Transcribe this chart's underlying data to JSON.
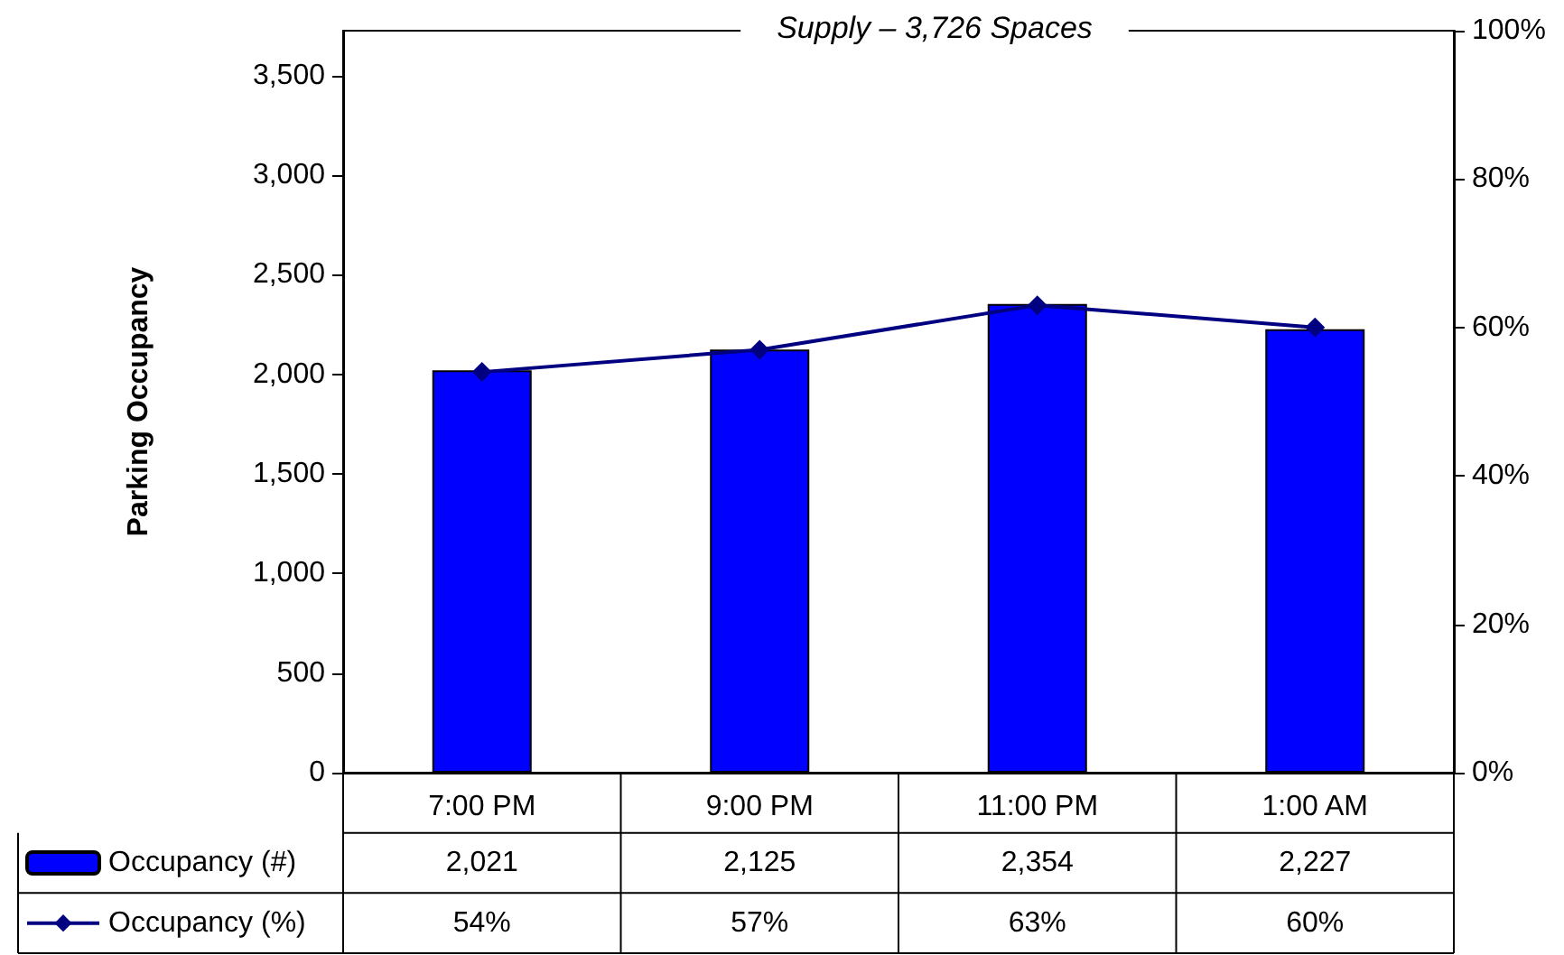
{
  "chart_data": {
    "type": "bar",
    "title": "Supply – 3,726 Spaces",
    "ylabel": "Parking Occupancy",
    "categories": [
      "7:00 PM",
      "9:00 PM",
      "11:00 PM",
      "1:00 AM"
    ],
    "series": [
      {
        "name": "Occupancy (#)",
        "color": "#0000ff",
        "values": [
          2021,
          2125,
          2354,
          2227
        ],
        "value_labels": [
          "2,021",
          "2,125",
          "2,354",
          "2,227"
        ]
      },
      {
        "name": "Occupancy (%)",
        "type": "line",
        "axis": "y2",
        "color": "#000080",
        "marker": "diamond",
        "values": [
          54,
          57,
          63,
          60
        ],
        "value_labels": [
          "54%",
          "57%",
          "63%",
          "60%"
        ]
      }
    ],
    "ylim": [
      0,
      3726
    ],
    "yticks": [
      0,
      {
        "value": 500,
        "label": "500"
      },
      {
        "value": 1000,
        "label": "1,000"
      },
      {
        "value": 1500,
        "label": "1,500"
      },
      {
        "value": 2000,
        "label": "2,000"
      },
      {
        "value": 2500,
        "label": "2,500"
      },
      {
        "value": 3000,
        "label": "3,000"
      },
      {
        "value": 3500,
        "label": "3,500"
      }
    ],
    "y2lim": [
      0,
      100
    ],
    "y2ticks": [
      {
        "value": 0,
        "label": "0%"
      },
      {
        "value": 20,
        "label": "20%"
      },
      {
        "value": 40,
        "label": "40%"
      },
      {
        "value": 60,
        "label": "60%"
      },
      {
        "value": 80,
        "label": "80%"
      },
      {
        "value": 100,
        "label": "100%"
      }
    ],
    "grid": false,
    "legend": "bottom left"
  }
}
